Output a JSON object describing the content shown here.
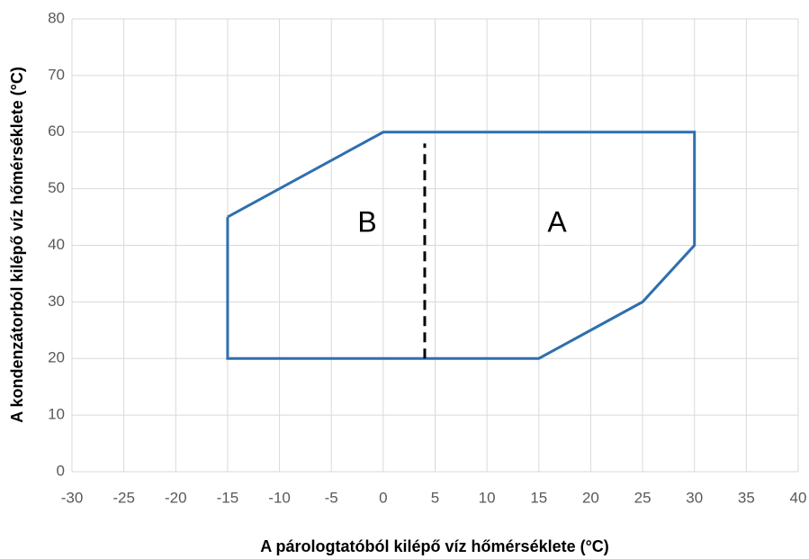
{
  "chart_data": {
    "type": "line",
    "xlabel": "A párologtatóból kilépő víz hőmérséklete (°C)",
    "ylabel": "A kondenzátorból kilépő víz hőmérséklete (°C)",
    "xlim": [
      -30,
      40
    ],
    "xticks": [
      -30,
      -25,
      -20,
      -15,
      -10,
      -5,
      0,
      5,
      10,
      15,
      20,
      25,
      30,
      35,
      40
    ],
    "ylim": [
      0,
      80
    ],
    "yticks": [
      0,
      10,
      20,
      30,
      40,
      50,
      60,
      70,
      80
    ],
    "grid": true,
    "series": [
      {
        "color": "#2e6fae",
        "dashed": false,
        "x": [
          -15,
          0,
          30,
          30,
          25,
          15,
          -15,
          -15
        ],
        "values": [
          45,
          60,
          60,
          40,
          30,
          20,
          20,
          45
        ]
      },
      {
        "color": "#000000",
        "dashed": true,
        "x": [
          4,
          4
        ],
        "values": [
          20,
          58
        ]
      }
    ],
    "annotations": [
      "B",
      "A"
    ]
  }
}
